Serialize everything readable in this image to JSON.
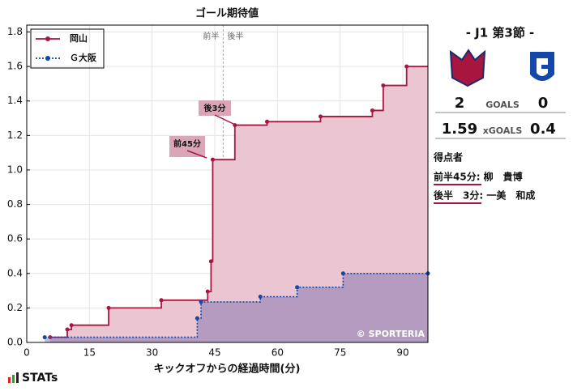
{
  "chart_data": {
    "type": "step",
    "title": "ゴール期待値",
    "x_label": "キックオフからの経過時間(分)",
    "xlim": [
      0,
      96
    ],
    "xticks": [
      0,
      15,
      30,
      45,
      60,
      75,
      90
    ],
    "ylim": [
      0,
      1.84
    ],
    "yticks": [
      {
        "value": 0,
        "label": "0.0"
      },
      0.2,
      0.4,
      0.6,
      0.8,
      {
        "value": 1,
        "label": "1.0"
      },
      1.2,
      1.4,
      1.6,
      1.8
    ],
    "grid": true,
    "legend": "upper left",
    "halftime": {
      "x": 47,
      "labels": [
        "前半",
        "後半"
      ]
    },
    "annotations": [
      "前45分",
      "後3分"
    ],
    "credit": "© SPORTERIA",
    "series": [
      {
        "name": "岡山",
        "color": "#a8163f",
        "fill": "#e9c6d2",
        "style": "solid",
        "x": [
          5.6,
          9.7,
          10.7,
          19.6,
          32.2,
          43.3,
          44.1,
          44.5,
          49.8,
          57.5,
          70.3,
          82.7,
          85.3,
          90.9
        ],
        "values": [
          0.03,
          0.075,
          0.1,
          0.2,
          0.245,
          0.295,
          0.47,
          1.06,
          1.26,
          1.28,
          1.31,
          1.345,
          1.49,
          1.6
        ]
      },
      {
        "name": "Ｇ大阪",
        "color": "#1447a8",
        "fill": "#6a5aa8",
        "style": "dotted",
        "x": [
          4.3,
          40.8,
          41.7,
          55.9,
          64.7,
          75.7,
          96
        ],
        "values": [
          0.03,
          0.14,
          0.235,
          0.265,
          0.32,
          0.4,
          0.4
        ]
      }
    ]
  },
  "match": {
    "round": "- J1 第3節 -",
    "goals_home": 2,
    "goals_label": "GOALS",
    "goals_away": 0,
    "xg_home": 1.59,
    "xg_label": "xGOALS",
    "xg_away": 0.4,
    "scorers_title": "得点者",
    "scorers": [
      "前半45分: 柳　貴博",
      "後半　3分: 一美　和成"
    ]
  },
  "brand": "STATs"
}
